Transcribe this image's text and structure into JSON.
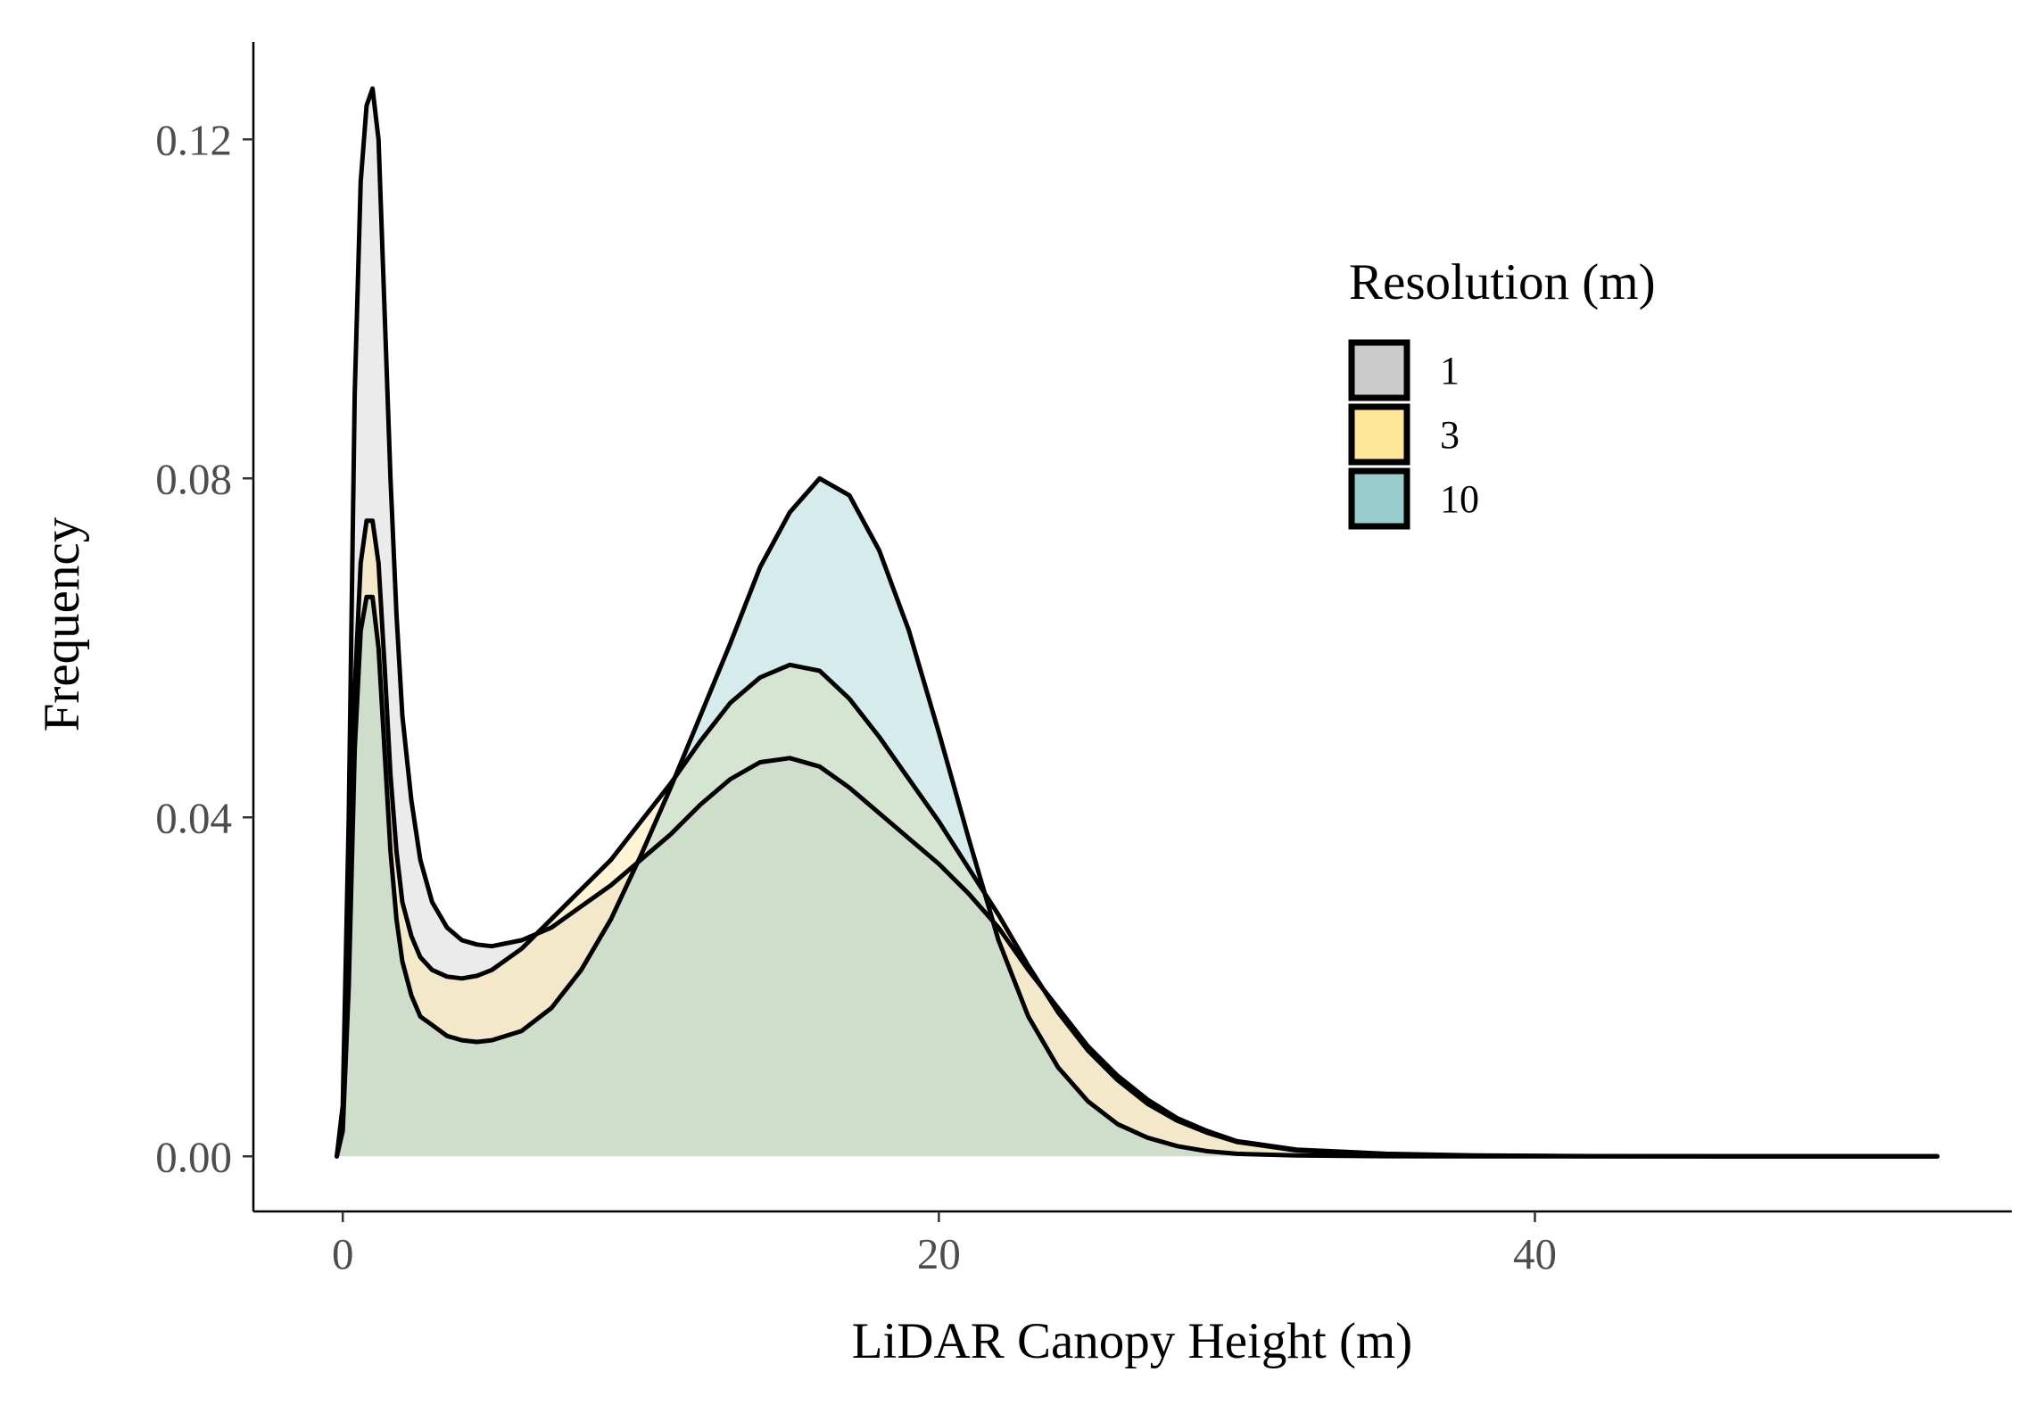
{
  "chart_data": {
    "type": "area",
    "subtype": "density",
    "title": "",
    "xlabel": "LiDAR Canopy Height (m)",
    "ylabel": "Frequency",
    "xlim": [
      -3,
      56
    ],
    "ylim": [
      -0.0065,
      0.1315
    ],
    "x_ticks": [
      0,
      20,
      40
    ],
    "x_tick_labels": [
      "0",
      "20",
      "40"
    ],
    "y_ticks": [
      0,
      0.04,
      0.08,
      0.12
    ],
    "y_tick_labels": [
      "0.00",
      "0.04",
      "0.08",
      "0.12"
    ],
    "grid": false,
    "legend": {
      "title": "Resolution (m)",
      "position": "right"
    },
    "series": [
      {
        "name": "1",
        "fill": "#cccccc",
        "x": [
          -0.2,
          0,
          0.2,
          0.4,
          0.6,
          0.8,
          1.0,
          1.2,
          1.4,
          1.6,
          1.8,
          2.0,
          2.3,
          2.6,
          3,
          3.5,
          4,
          4.5,
          5,
          6,
          7,
          8,
          9,
          10,
          11,
          12,
          13,
          14,
          15,
          16,
          17,
          18,
          19,
          20,
          21,
          22,
          23,
          24,
          25,
          26,
          27,
          28,
          29,
          30,
          32,
          35,
          38,
          42,
          46,
          50,
          53.5
        ],
        "y": [
          0.0,
          0.006,
          0.04,
          0.09,
          0.115,
          0.124,
          0.126,
          0.12,
          0.1,
          0.08,
          0.064,
          0.052,
          0.042,
          0.035,
          0.03,
          0.027,
          0.0255,
          0.025,
          0.0248,
          0.0255,
          0.027,
          0.0295,
          0.032,
          0.035,
          0.038,
          0.0415,
          0.0445,
          0.0465,
          0.047,
          0.046,
          0.0435,
          0.0405,
          0.0375,
          0.0345,
          0.031,
          0.027,
          0.022,
          0.0175,
          0.013,
          0.0095,
          0.0067,
          0.0045,
          0.003,
          0.0018,
          0.0008,
          0.0003,
          0.0001,
          3e-05,
          1e-05,
          0.0,
          0.0
        ]
      },
      {
        "name": "3",
        "fill": "#ffe699",
        "x": [
          -0.2,
          0,
          0.2,
          0.4,
          0.6,
          0.8,
          1.0,
          1.2,
          1.4,
          1.6,
          1.8,
          2.0,
          2.3,
          2.6,
          3,
          3.5,
          4,
          4.5,
          5,
          6,
          7,
          8,
          9,
          10,
          11,
          12,
          13,
          14,
          15,
          16,
          17,
          18,
          19,
          20,
          21,
          22,
          23,
          24,
          25,
          26,
          27,
          28,
          29,
          30,
          32,
          35,
          38,
          42,
          46,
          50,
          53.5
        ],
        "y": [
          0.0,
          0.004,
          0.025,
          0.055,
          0.07,
          0.075,
          0.075,
          0.07,
          0.058,
          0.045,
          0.036,
          0.03,
          0.026,
          0.0235,
          0.022,
          0.0212,
          0.021,
          0.0213,
          0.022,
          0.0245,
          0.028,
          0.0315,
          0.035,
          0.0395,
          0.044,
          0.049,
          0.0535,
          0.0565,
          0.058,
          0.0573,
          0.054,
          0.0495,
          0.0445,
          0.0395,
          0.034,
          0.0285,
          0.0225,
          0.017,
          0.0125,
          0.009,
          0.0062,
          0.0042,
          0.0028,
          0.0017,
          0.0007,
          0.0002,
          7e-05,
          2e-05,
          1e-05,
          0.0,
          0.0
        ]
      },
      {
        "name": "10",
        "fill": "#99cccc",
        "x": [
          -0.2,
          0,
          0.2,
          0.4,
          0.6,
          0.8,
          1.0,
          1.2,
          1.4,
          1.6,
          1.8,
          2.0,
          2.3,
          2.6,
          3,
          3.5,
          4,
          4.5,
          5,
          6,
          7,
          8,
          9,
          10,
          11,
          12,
          13,
          14,
          15,
          16,
          17,
          18,
          19,
          20,
          21,
          22,
          23,
          24,
          25,
          26,
          27,
          28,
          29,
          30,
          32,
          35,
          38,
          42,
          46,
          50,
          53.5
        ],
        "y": [
          0.0,
          0.003,
          0.02,
          0.048,
          0.062,
          0.066,
          0.066,
          0.06,
          0.048,
          0.036,
          0.028,
          0.023,
          0.019,
          0.0165,
          0.0155,
          0.0142,
          0.0137,
          0.0135,
          0.0137,
          0.0148,
          0.0175,
          0.022,
          0.028,
          0.0355,
          0.0435,
          0.052,
          0.0605,
          0.0695,
          0.076,
          0.08,
          0.078,
          0.0715,
          0.062,
          0.05,
          0.0375,
          0.0255,
          0.0165,
          0.0105,
          0.0065,
          0.0038,
          0.0022,
          0.0012,
          0.0006,
          0.0003,
          0.0001,
          2e-05,
          1e-05,
          0.0,
          0.0,
          0.0,
          0.0
        ]
      }
    ]
  }
}
